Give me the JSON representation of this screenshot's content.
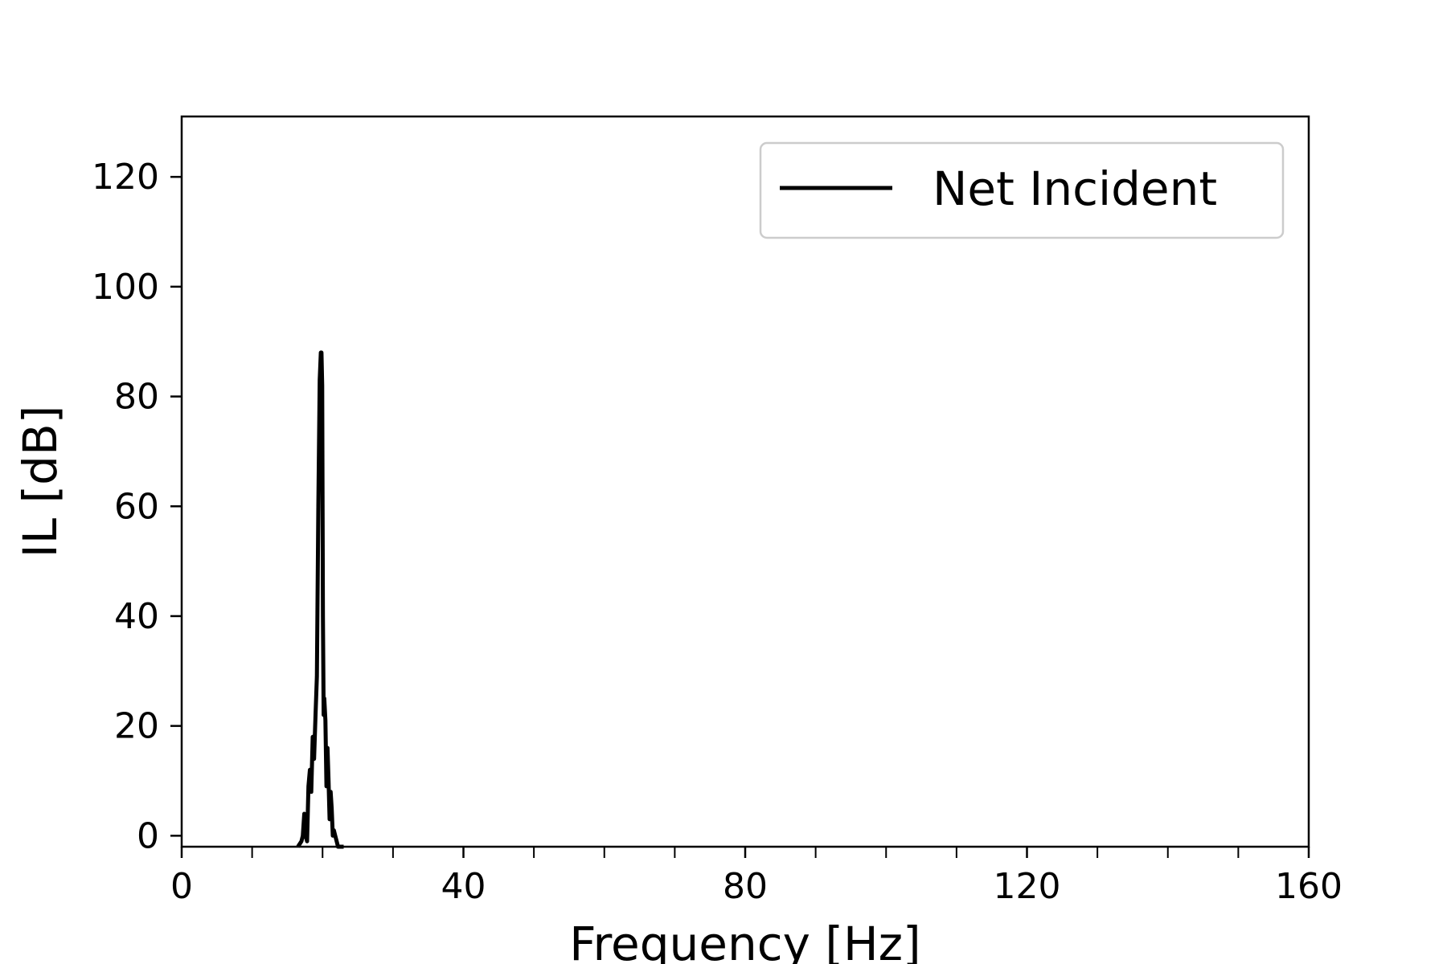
{
  "chart_data": {
    "type": "line",
    "title": "",
    "xlabel": "Frequency [Hz]",
    "ylabel": "IL [dB]",
    "xlim": [
      0,
      160
    ],
    "ylim": [
      -2,
      131
    ],
    "x_ticks": [
      0,
      40,
      80,
      120,
      160
    ],
    "x_minor_ticks": [
      10,
      20,
      30,
      50,
      60,
      70,
      90,
      100,
      110,
      130,
      140,
      150
    ],
    "y_ticks": [
      0,
      20,
      40,
      60,
      80,
      100,
      120
    ],
    "x_tick_labels": [
      "0",
      "40",
      "80",
      "120",
      "160"
    ],
    "y_tick_labels": [
      "0",
      "20",
      "40",
      "60",
      "80",
      "100",
      "120"
    ],
    "grid": false,
    "legend": {
      "position": "top-right",
      "entries": [
        "Net Incident"
      ]
    },
    "series": [
      {
        "name": "Net Incident",
        "color": "#000000",
        "x": [
          16.5,
          17.0,
          17.2,
          17.4,
          17.6,
          17.8,
          18.0,
          18.2,
          18.4,
          18.6,
          18.8,
          19.0,
          19.2,
          19.4,
          19.6,
          19.75,
          19.85,
          19.95,
          20.05,
          20.15,
          20.25,
          20.4,
          20.55,
          20.7,
          20.85,
          21.0,
          21.15,
          21.3,
          21.45,
          21.6,
          21.8,
          22.0,
          22.2,
          22.5,
          23.0
        ],
        "y": [
          -2,
          -1,
          0,
          4,
          0,
          -1,
          9,
          12,
          8,
          18,
          14,
          22,
          29,
          60,
          83,
          88,
          88,
          82,
          40,
          22,
          25,
          21,
          9,
          16,
          10,
          3,
          8,
          5,
          0,
          1,
          0,
          -1,
          -2,
          -2,
          -2
        ]
      }
    ]
  }
}
